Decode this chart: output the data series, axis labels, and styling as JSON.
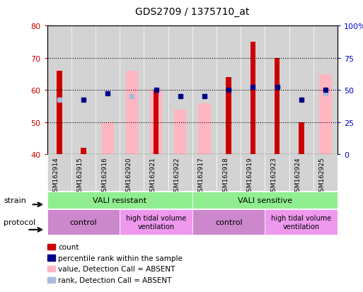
{
  "title": "GDS2709 / 1375710_at",
  "samples": [
    "GSM162914",
    "GSM162915",
    "GSM162916",
    "GSM162920",
    "GSM162921",
    "GSM162922",
    "GSM162917",
    "GSM162918",
    "GSM162919",
    "GSM162923",
    "GSM162924",
    "GSM162925"
  ],
  "count_values": [
    66,
    42,
    null,
    null,
    60,
    null,
    null,
    64,
    75,
    70,
    50,
    null
  ],
  "pink_bar_values": [
    null,
    null,
    50,
    66,
    60,
    54,
    56,
    null,
    null,
    null,
    null,
    65
  ],
  "blue_square_values": [
    null,
    57,
    59,
    null,
    60,
    58,
    58,
    60,
    61,
    61,
    57,
    60
  ],
  "light_blue_square_values": [
    57,
    null,
    null,
    58,
    null,
    58,
    58,
    null,
    null,
    null,
    null,
    59
  ],
  "ylim": [
    40,
    80
  ],
  "yticks_left": [
    40,
    50,
    60,
    70,
    80
  ],
  "count_color": "#CC0000",
  "pink_color": "#FFB6C1",
  "blue_color": "#00008B",
  "light_blue_color": "#AABBDD",
  "ax_label_color_left": "#CC0000",
  "ax_label_color_right": "#0000CC",
  "strain_green": "#90EE90",
  "protocol_pink_dark": "#CC88CC",
  "protocol_pink_light": "#EE99EE",
  "bg_gray": "#D3D3D3",
  "legend_items": [
    {
      "color": "#CC0000",
      "label": "count"
    },
    {
      "color": "#00008B",
      "label": "percentile rank within the sample"
    },
    {
      "color": "#FFB6C1",
      "label": "value, Detection Call = ABSENT"
    },
    {
      "color": "#AABBDD",
      "label": "rank, Detection Call = ABSENT"
    }
  ]
}
